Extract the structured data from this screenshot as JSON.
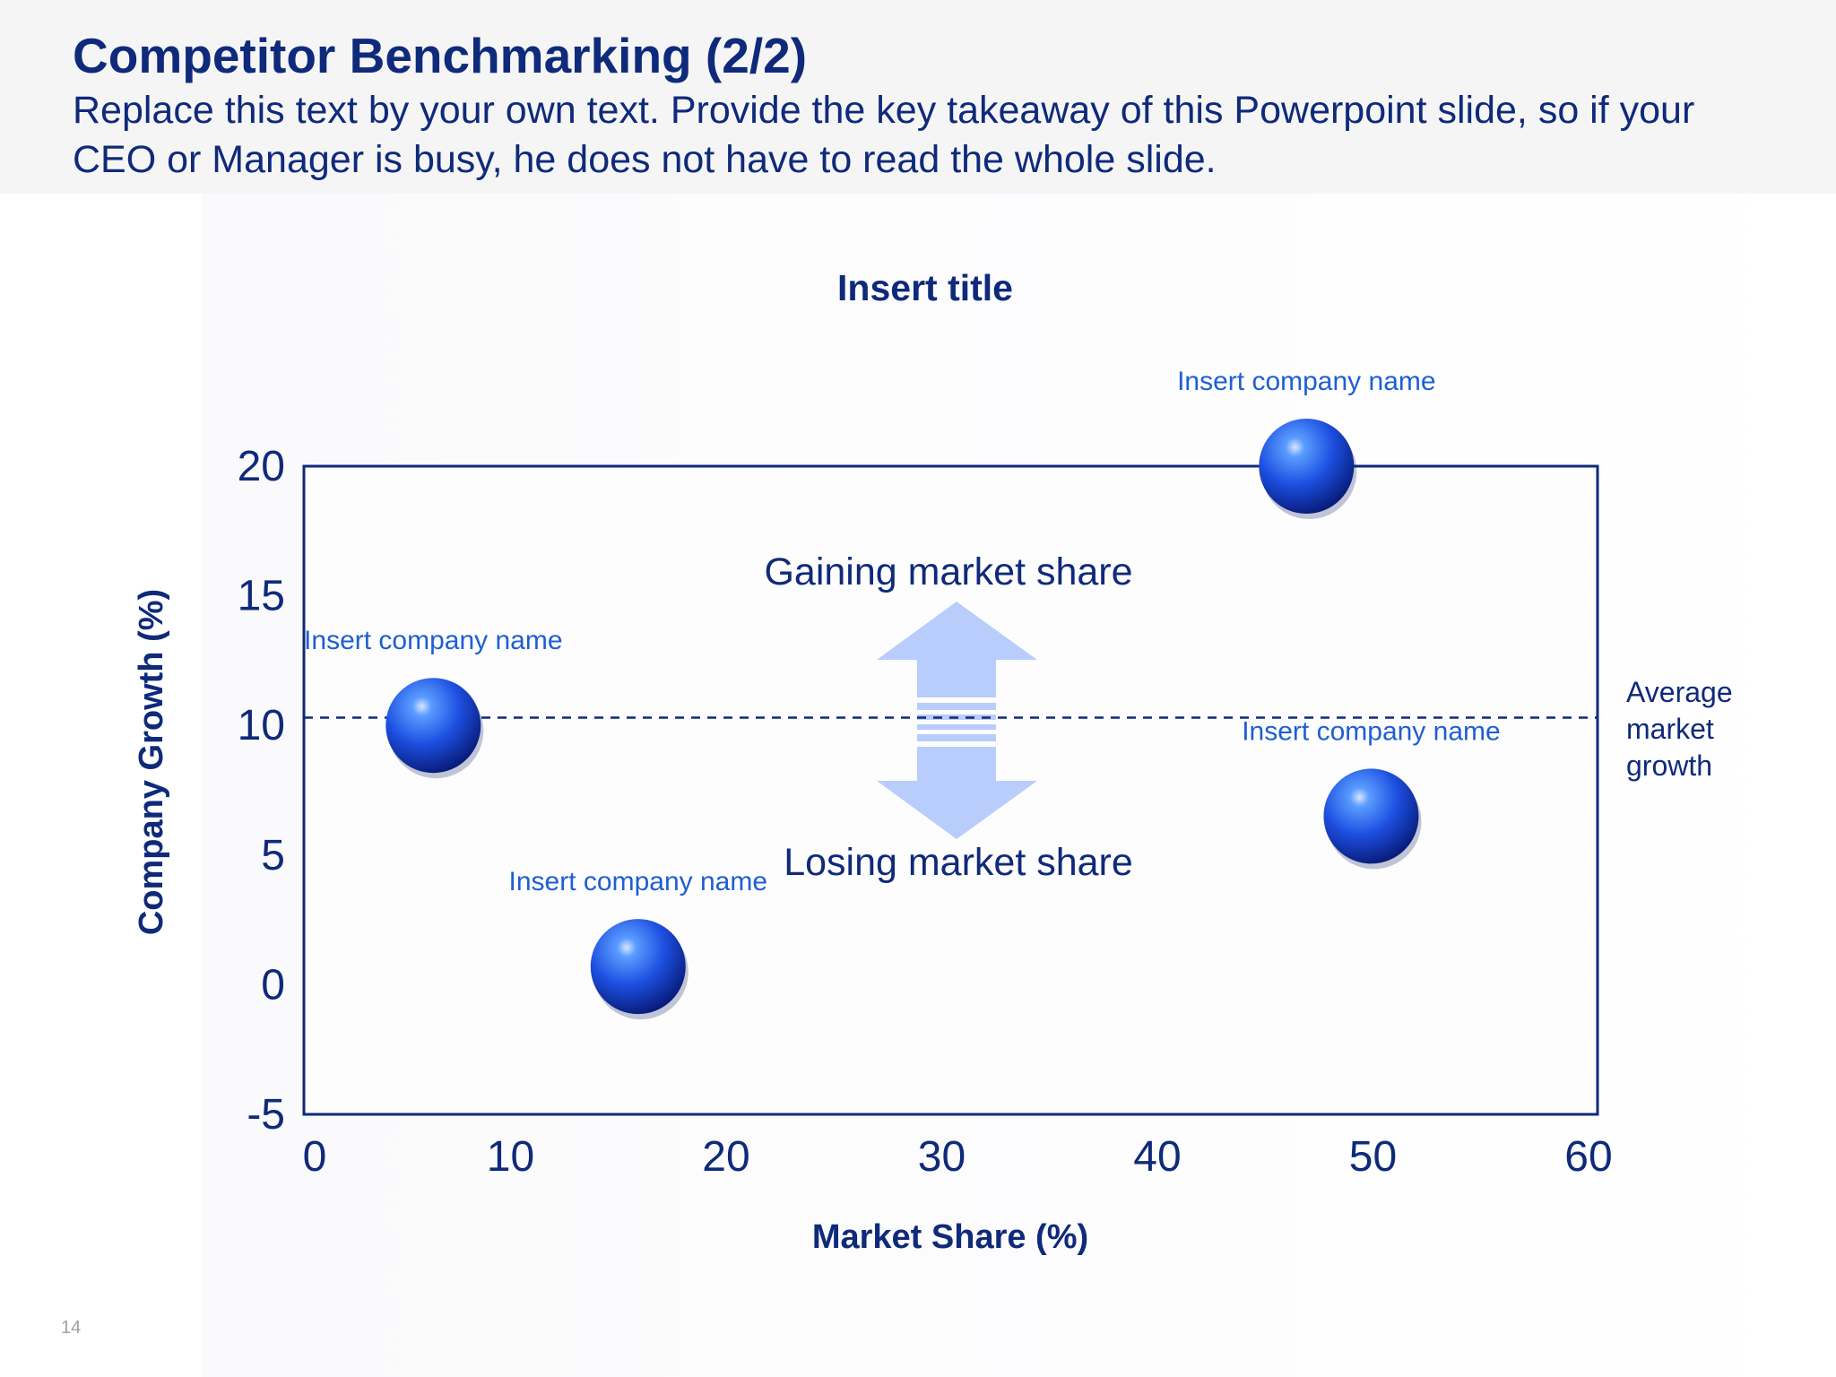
{
  "slide": {
    "title": "Competitor Benchmarking (2/2)",
    "subtitle": "Replace this text by your own text. Provide the key takeaway of this Powerpoint slide, so if your CEO or Manager is busy, he does not have to read the whole slide.",
    "page_number": "14"
  },
  "colors": {
    "title": "#0f2a7a",
    "axis": "#0f2a7a",
    "label": "#1e5fd1",
    "bubble_dark": "#0a2a9a",
    "bubble_light": "#5a9cff",
    "arrow": "#b8cdfb",
    "header_band": "#f5f5f6"
  },
  "chart_data": {
    "type": "scatter",
    "title": "Insert title",
    "xlabel": "Market Share (%)",
    "ylabel": "Company Growth (%)",
    "xlim": [
      0,
      60
    ],
    "ylim": [
      -5,
      20
    ],
    "xticks": [
      "0",
      "10",
      "20",
      "30",
      "40",
      "50",
      "60"
    ],
    "yticks": [
      "-5",
      "0",
      "5",
      "10",
      "15",
      "20"
    ],
    "points": [
      {
        "label": "Insert company name",
        "x": 6,
        "y": 10
      },
      {
        "label": "Insert company name",
        "x": 15.5,
        "y": 0.7
      },
      {
        "label": "Insert company name",
        "x": 46.5,
        "y": 20
      },
      {
        "label": "Insert company name",
        "x": 49.5,
        "y": 6.5
      }
    ],
    "reference_line": {
      "y": 10.3,
      "label_lines": [
        "Average",
        "market",
        "growth"
      ]
    },
    "annotations": {
      "upper": "Gaining market share",
      "lower": "Losing market share"
    }
  }
}
